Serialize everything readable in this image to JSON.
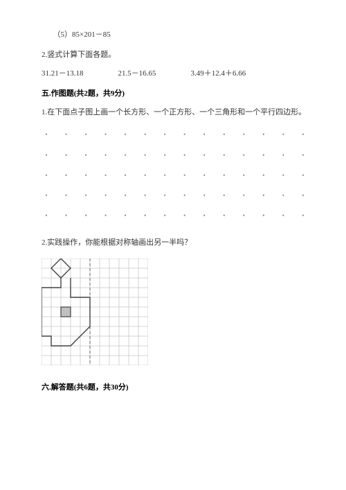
{
  "q1_5": "（5）85×201－85",
  "q2_title": "2.竖式计算下面各题。",
  "q2_items": [
    "31.21－13.18",
    "21.5－16.65",
    "3.49＋12.4＋6.66"
  ],
  "section5_header": "五.作图题(共2题，共9分)",
  "s5_q1": "1.在下面点子图上画一个长方形、一个正方形、一个三角形和一个平行四边形。",
  "dot_grid": {
    "rows": 5,
    "cols": 14,
    "dot_color": "#888888"
  },
  "s5_q2": "2.实践操作，你能根据对称轴画出另一半吗？",
  "grid_svg": {
    "size": 160,
    "cells": 11,
    "cell": 14,
    "grid_color": "#c8c8c8",
    "line_color": "#404040",
    "dash_color": "#606060",
    "fill_gray": "#c0c0c0"
  },
  "section6_header": "六.解答题(共6题，共30分)",
  "colors": {
    "text": "#333333",
    "bg": "#ffffff"
  }
}
